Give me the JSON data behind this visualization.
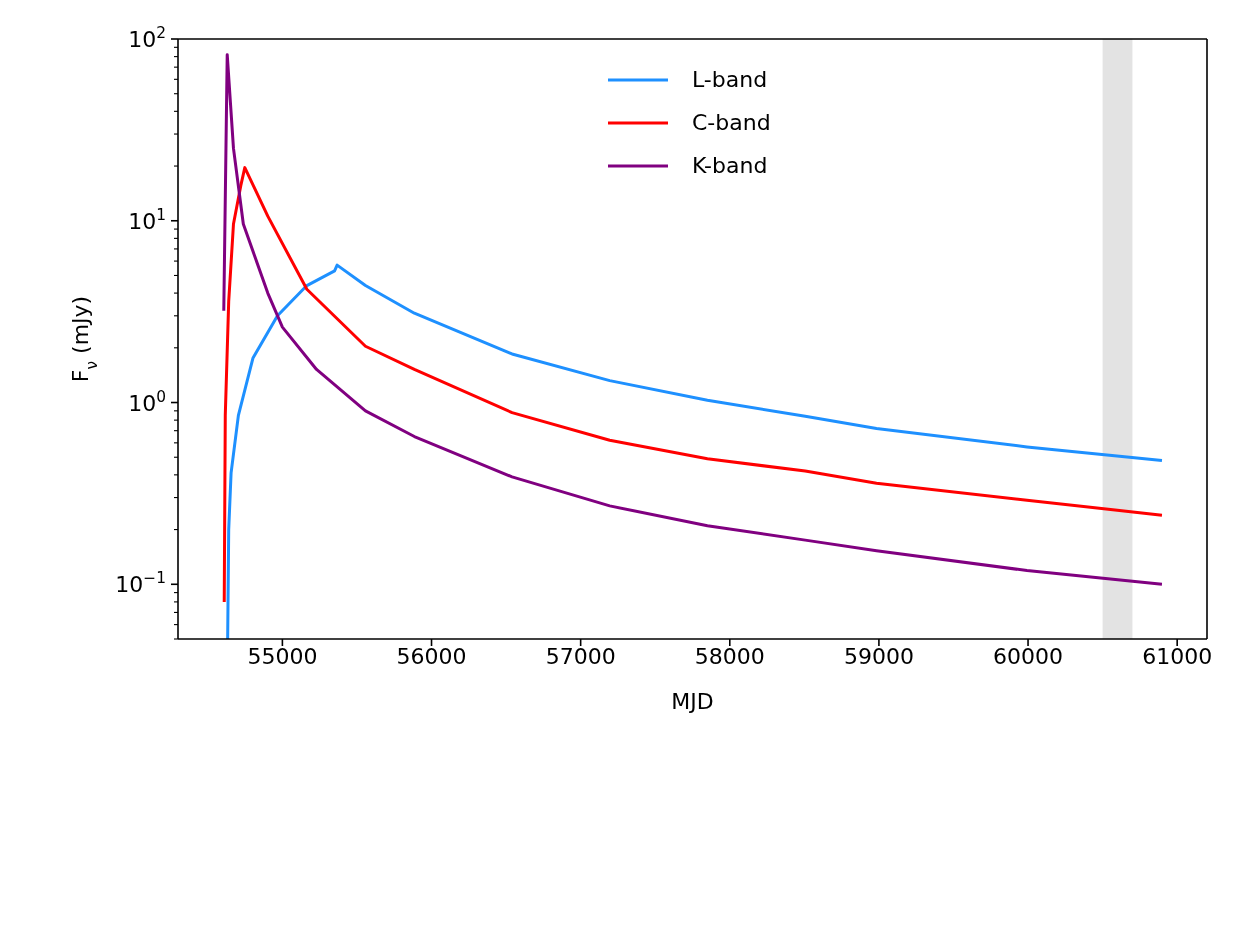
{
  "chart_data": {
    "type": "line",
    "xlabel": "MJD",
    "ylabel": "F$_{ν}$ (mJy)",
    "log": "y",
    "legend": "top",
    "marker": "none",
    "line_style": "solid",
    "xlim": [
      54300,
      61200
    ],
    "xticks": [
      55000,
      56000,
      57000,
      58000,
      59000,
      60000,
      61000
    ],
    "ylim": [
      0.05,
      100
    ],
    "yticks": [
      {
        "value": 0.05,
        "label": null
      },
      {
        "value": 0.06,
        "label": null
      },
      {
        "value": 0.07,
        "label": null
      },
      {
        "value": 0.08,
        "label": null
      },
      {
        "value": 0.09,
        "label": null
      },
      {
        "value": 0.1,
        "label": "10$^{−1}$"
      },
      {
        "value": 0.2,
        "label": null
      },
      {
        "value": 0.3,
        "label": null
      },
      {
        "value": 0.4,
        "label": null
      },
      {
        "value": 0.5,
        "label": null
      },
      {
        "value": 0.6,
        "label": null
      },
      {
        "value": 0.7,
        "label": null
      },
      {
        "value": 0.8,
        "label": null
      },
      {
        "value": 0.9,
        "label": null
      },
      {
        "value": 1,
        "label": "10$^{0}$"
      },
      {
        "value": 2,
        "label": null
      },
      {
        "value": 3,
        "label": null
      },
      {
        "value": 4,
        "label": null
      },
      {
        "value": 5,
        "label": null
      },
      {
        "value": 6,
        "label": null
      },
      {
        "value": 7,
        "label": null
      },
      {
        "value": 8,
        "label": null
      },
      {
        "value": 9,
        "label": null
      },
      {
        "value": 10,
        "label": "10$^{1}$"
      },
      {
        "value": 20,
        "label": null
      },
      {
        "value": 30,
        "label": null
      },
      {
        "value": 40,
        "label": null
      },
      {
        "value": 50,
        "label": null
      },
      {
        "value": 60,
        "label": null
      },
      {
        "value": 70,
        "label": null
      },
      {
        "value": 80,
        "label": null
      },
      {
        "value": 90,
        "label": null
      },
      {
        "value": 100,
        "label": "10$^{2}$"
      }
    ],
    "bands": [
      {
        "axis": "x",
        "from": 60500,
        "to": 60700,
        "color": "#e3e3e3"
      }
    ],
    "series": [
      {
        "name": "L-band",
        "color": "#1e90ff",
        "x": [
          54633,
          54640,
          54656,
          54705,
          54803,
          54967,
          55164,
          55350,
          55367,
          55557,
          55885,
          56540,
          57195,
          57850,
          58506,
          58984,
          59993,
          60898
        ],
        "values": [
          0.05,
          0.2,
          0.41,
          0.85,
          1.76,
          3.0,
          4.4,
          5.3,
          5.7,
          4.4,
          3.1,
          1.85,
          1.32,
          1.03,
          0.84,
          0.72,
          0.57,
          0.48
        ]
      },
      {
        "name": "C-band",
        "color": "#ff0000",
        "x": [
          54610,
          54617,
          54640,
          54672,
          54721,
          54748,
          54902,
          55164,
          55557,
          55885,
          56540,
          57195,
          57850,
          58506,
          58984,
          59993,
          60898
        ],
        "values": [
          0.08,
          0.85,
          3.6,
          9.6,
          15.6,
          19.6,
          10.6,
          4.2,
          2.04,
          1.52,
          0.88,
          0.62,
          0.49,
          0.42,
          0.36,
          0.29,
          0.24
        ]
      },
      {
        "name": "K-band",
        "color": "#800080",
        "x": [
          54607,
          54630,
          54672,
          54738,
          54902,
          55000,
          55229,
          55557,
          55885,
          56540,
          57195,
          57850,
          58506,
          58984,
          59993,
          60898
        ],
        "values": [
          3.2,
          82,
          25,
          9.6,
          4.0,
          2.6,
          1.52,
          0.9,
          0.65,
          0.39,
          0.27,
          0.21,
          0.175,
          0.153,
          0.119,
          0.1
        ]
      }
    ]
  }
}
